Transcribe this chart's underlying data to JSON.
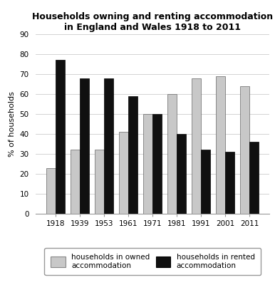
{
  "title_line1": "Households owning and renting accommodation",
  "title_line2": "in England and Wales 1918 to 2011",
  "years": [
    "1918",
    "1939",
    "1953",
    "1961",
    "1971",
    "1981",
    "1991",
    "2001",
    "2011"
  ],
  "owned": [
    23,
    32,
    32,
    41,
    50,
    60,
    68,
    69,
    64
  ],
  "rented": [
    77,
    68,
    68,
    59,
    50,
    40,
    32,
    31,
    36
  ],
  "owned_color": "#c8c8c8",
  "rented_color": "#101010",
  "ylabel": "% of households",
  "ylim": [
    0,
    90
  ],
  "yticks": [
    0,
    10,
    20,
    30,
    40,
    50,
    60,
    70,
    80,
    90
  ],
  "legend_owned": "households in owned\naccommodation",
  "legend_rented": "households in rented\naccommodation",
  "bar_width": 0.38,
  "title_fontsize": 9,
  "axis_fontsize": 8,
  "tick_fontsize": 7.5,
  "legend_fontsize": 7.5
}
